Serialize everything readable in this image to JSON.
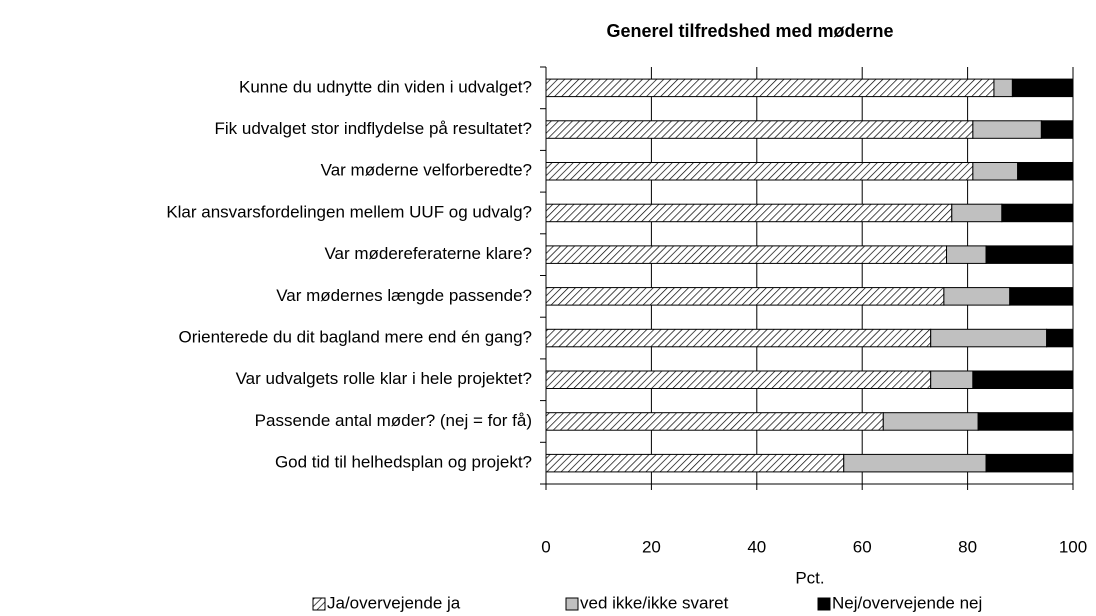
{
  "chart_data": {
    "type": "stacked-barh",
    "title": "Generel tilfredshed med møderne",
    "categories": [
      "Kunne du udnytte din viden i udvalget?",
      "Fik udvalget stor indflydelse på resultatet?",
      "Var møderne velforberedte?",
      "Klar ansvarsfordelingen mellem UUF og udvalg?",
      "Var mødereferaterne klare?",
      "Var mødernes længde passende?",
      "Orienterede du dit bagland mere end én gang?",
      "Var udvalgets rolle klar i hele projektet?",
      "Passende antal møder? (nej = for få)",
      "God tid til helhedsplan og projekt?"
    ],
    "series": [
      {
        "name": "Ja/overvejende ja",
        "color": "#000000",
        "hatch": true,
        "values": [
          85,
          81,
          81,
          77,
          76,
          75.5,
          73,
          73,
          64,
          56.5
        ]
      },
      {
        "name": "ved ikke/ikke svaret",
        "color": "#c0c0c0",
        "values": [
          3.5,
          13,
          8.5,
          9.5,
          7.5,
          12.5,
          22,
          8,
          18,
          27
        ]
      },
      {
        "name": "Nej/overvejende nej",
        "color": "#000000",
        "values": [
          11.5,
          6,
          10.5,
          13.5,
          16.5,
          12,
          5,
          19,
          18,
          16.5
        ]
      }
    ],
    "xlabel": "Pct.",
    "xlim": [
      0,
      100
    ],
    "xticks": [
      0,
      20,
      40,
      60,
      80,
      100
    ],
    "grid": true,
    "legend": "bottom"
  }
}
